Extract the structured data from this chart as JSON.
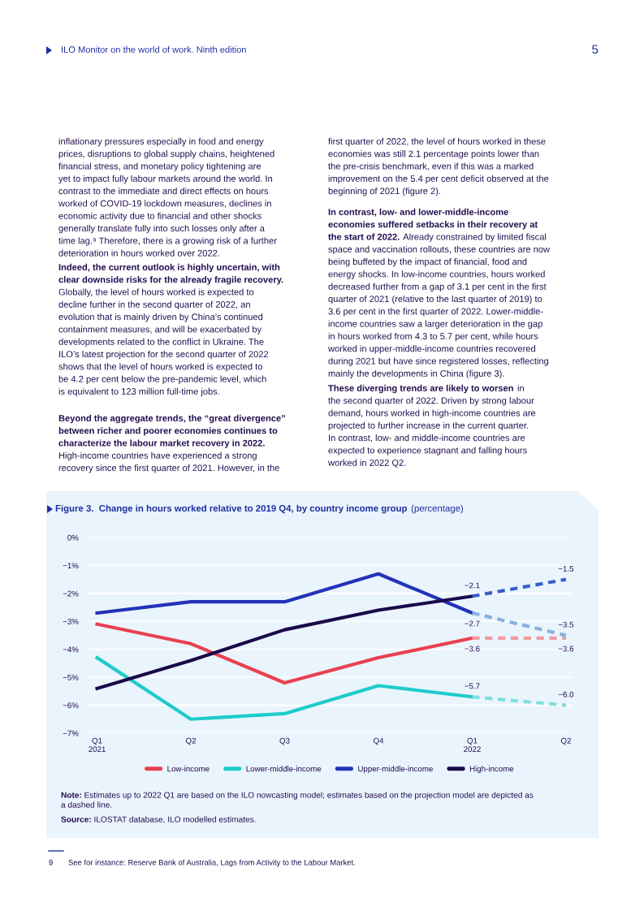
{
  "chart_data": {
    "type": "line",
    "title": "Figure 3.  Change in hours worked relative to 2019 Q4, by country income group",
    "subtitle": "(percentage)",
    "categories": [
      "Q1\n2021",
      "Q2",
      "Q3",
      "Q4",
      "Q1\n2022",
      "Q2"
    ],
    "series": [
      {
        "name": "Low-income",
        "color": "#e8414f",
        "values": [
          -3.1,
          -3.8,
          -5.2,
          -4.3,
          -3.6,
          null
        ],
        "value_labels": [
          null,
          null,
          null,
          null,
          "−3.6",
          null
        ]
      },
      {
        "name": "Lower-middle-income",
        "color": "#1ecbcb",
        "values": [
          -4.3,
          -6.5,
          -6.3,
          -5.3,
          -5.7,
          null
        ],
        "value_labels": [
          null,
          null,
          null,
          null,
          "−5.7",
          null
        ]
      },
      {
        "name": "Upper-middle-income",
        "color": "#2233b8",
        "values": [
          -2.7,
          -2.3,
          -2.3,
          -1.3,
          -2.7,
          null
        ],
        "value_labels": [
          null,
          null,
          null,
          null,
          "−2.7",
          null
        ]
      },
      {
        "name": "High-income",
        "color": "#1a0a4a",
        "values": [
          -5.4,
          -4.4,
          -3.3,
          -2.6,
          -2.1,
          null
        ],
        "value_labels": [
          null,
          null,
          null,
          null,
          "−2.1",
          null
        ]
      },
      {
        "color": "#f29aa0",
        "line_style": "dashed",
        "values": [
          null,
          null,
          null,
          null,
          -3.6,
          -3.6
        ],
        "value_labels": [
          null,
          null,
          null,
          null,
          null,
          "−3.6"
        ]
      },
      {
        "color": "#7ddfe0",
        "line_style": "dashed",
        "values": [
          null,
          null,
          null,
          null,
          -5.7,
          -6.0
        ],
        "value_labels": [
          null,
          null,
          null,
          null,
          null,
          "−6.0"
        ]
      },
      {
        "color": "#8ab0dd",
        "line_style": "dashed",
        "values": [
          null,
          null,
          null,
          null,
          -2.7,
          -3.5
        ],
        "value_labels": [
          null,
          null,
          null,
          null,
          null,
          "−3.5"
        ]
      },
      {
        "color": "#3a5fc8",
        "line_style": "dashed",
        "values": [
          null,
          null,
          null,
          null,
          -2.1,
          -1.5
        ],
        "value_labels": [
          null,
          null,
          null,
          null,
          null,
          "−1.5"
        ]
      }
    ],
    "ylim": [
      -7,
      0
    ],
    "yticks": [
      {
        "value": 0,
        "label": "0%"
      },
      {
        "value": -1,
        "label": "−1%"
      },
      {
        "value": -2,
        "label": "−2%"
      },
      {
        "value": -3,
        "label": "−3%"
      },
      {
        "value": -4,
        "label": "−4%"
      },
      {
        "value": -5,
        "label": "−5%"
      },
      {
        "value": -6,
        "label": "−6%"
      },
      {
        "value": -7,
        "label": "−7%"
      }
    ],
    "grid": "y",
    "legend": "bottom",
    "marker": "none",
    "line_style": "solid",
    "annotations": [
      "ILO Monitor on the world of work. Ninth edition",
      "5",
      "inflationary pressures especially in food and energy\nprices, disruptions to global supply chains, heightened\nfinancial stress, and monetary policy tightening are\nyet to impact fully labour markets around the world. In\ncontrast to the immediate and direct effects on hours\nworked of COVID-19 lockdown measures, declines in\neconomic activity due to financial and other shocks\ngenerally translate fully into such losses only after a\ntime lag.⁹ Therefore, there is a growing risk of a further\ndeterioration in hours worked over 2022.",
      "Indeed, the current outlook is highly uncertain, with\nclear downside risks for the already fragile recovery.",
      "Globally, the level of hours worked is expected to\ndecline further in the second quarter of 2022, an\nevolution that is mainly driven by China’s continued\ncontainment measures, and will be exacerbated by\ndevelopments related to the conflict in Ukraine. The\nILO’s latest projection for the second quarter of 2022\nshows that the level of hours worked is expected to\nbe 4.2 per cent below the pre-pandemic level, which\nis equivalent to 123 million full-time jobs.",
      "Beyond the aggregate trends, the “great divergence”\nbetween richer and poorer economies continues to\ncharacterize the labour market recovery in 2022.",
      "High-income countries have experienced a strong\nrecovery since the first quarter of 2021. However, in the",
      "first quarter of 2022, the level of hours worked in these\neconomies was still 2.1 percentage points lower than\nthe pre-crisis benchmark, even if this was a marked\nimprovement on the 5.4 per cent deficit observed at the\nbeginning of 2021 (figure 2).",
      "In contrast, low- and lower-middle-income\neconomies suffered setbacks in their recovery at\nthe start of 2022.",
      "Already constrained by limited fiscal\nspace and vaccination rollouts, these countries are now\nbeing buffeted by the impact of financial, food and\nenergy shocks. In low-income countries, hours worked\ndecreased further from a gap of 3.1 per cent in the first\nquarter of 2021 (relative to the last quarter of 2019) to\n3.6 per cent in the first quarter of 2022. Lower-middle-\nincome countries saw a larger deterioration in the gap\nin hours worked from 4.3 to 5.7 per cent, while hours\nworked in upper-middle-income countries recovered\nduring 2021 but have since registered losses, reflecting\nmainly the developments in China (figure 3).",
      "These diverging trends are likely to worsen",
      "in\nthe second quarter of 2022. Driven by strong labour\ndemand, hours worked in high-income countries are\nprojected to further increase in the current quarter.\nIn contrast, low- and middle-income countries are\nexpected to experience stagnant and falling hours\nworked in 2022 Q2.",
      "Note:",
      "Estimates up to 2022 Q1 are based on the ILO nowcasting model; estimates based on the projection model are depicted as\na dashed line.",
      "Source:",
      "ILOSTAT database, ILO modelled estimates.",
      "9",
      "See for instance: Reserve Bank of Australia, Lags from Activity to the Labour Market."
    ]
  }
}
